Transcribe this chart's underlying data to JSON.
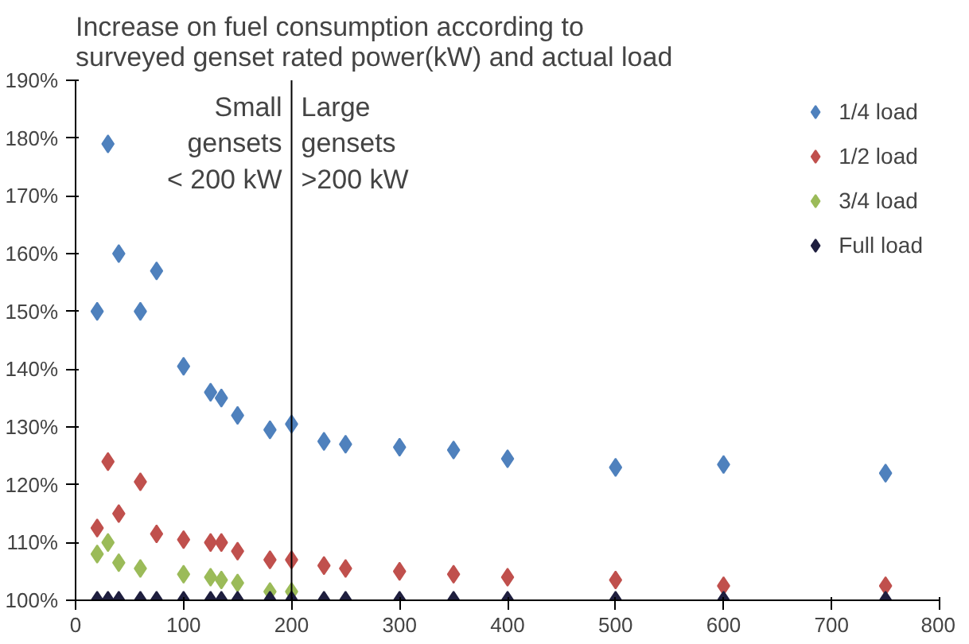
{
  "chart_data": {
    "type": "scatter",
    "title": "Increase on fuel consumption according to\nsurveyed genset rated power(kW) and actual load",
    "x": [
      20,
      30,
      40,
      60,
      75,
      100,
      125,
      135,
      150,
      180,
      200,
      230,
      250,
      300,
      350,
      400,
      500,
      600,
      750
    ],
    "series": [
      {
        "name": "1/4 load",
        "color": "#4f81bd",
        "values": [
          150,
          179,
          160,
          150,
          157,
          140.5,
          136,
          135,
          132,
          129.5,
          130.5,
          127.5,
          127,
          126.5,
          126,
          124.5,
          123,
          123.5,
          122
        ]
      },
      {
        "name": "1/2 load",
        "color": "#c0504d",
        "values": [
          112.5,
          124,
          115,
          120.5,
          111.5,
          110.5,
          110,
          110,
          108.5,
          107,
          107,
          106,
          105.5,
          105,
          104.5,
          104,
          103.5,
          102.5,
          102.5
        ]
      },
      {
        "name": "3/4 load",
        "color": "#9bbb59",
        "values": [
          108,
          110,
          106.5,
          105.5,
          null,
          104.5,
          104,
          103.5,
          103,
          101.5,
          101.5,
          null,
          null,
          null,
          null,
          null,
          null,
          null,
          null
        ]
      },
      {
        "name": "Full load",
        "color": "#1f1f3f",
        "values": [
          100,
          100,
          100,
          100,
          100,
          100,
          100,
          100,
          100,
          100,
          100,
          100,
          100,
          100,
          100,
          100,
          100,
          100,
          100
        ]
      }
    ],
    "xlim": [
      0,
      800
    ],
    "xticks": [
      0,
      100,
      200,
      300,
      400,
      500,
      600,
      700,
      800
    ],
    "ylim": [
      100,
      190
    ],
    "yticks": [
      {
        "value": 100,
        "label": "100%"
      },
      {
        "value": 110,
        "label": "110%"
      },
      {
        "value": 120,
        "label": "120%"
      },
      {
        "value": 130,
        "label": "130%"
      },
      {
        "value": 140,
        "label": "140%"
      },
      {
        "value": 150,
        "label": "150%"
      },
      {
        "value": 160,
        "label": "160%"
      },
      {
        "value": 170,
        "label": "170%"
      },
      {
        "value": 180,
        "label": "180%"
      },
      {
        "value": 190,
        "label": "190%"
      }
    ],
    "ref_lines": [
      {
        "axis": "x",
        "value": 200,
        "color": "#000000"
      }
    ],
    "annotations": [
      {
        "text": "Small\ngensets\n< 200 kW",
        "x": 200,
        "y": 188
      },
      {
        "text": "Large\ngensets\n>200 kW",
        "x": 200,
        "y": 188
      }
    ],
    "marker": "diamond",
    "legend": "top right",
    "grid": false
  }
}
